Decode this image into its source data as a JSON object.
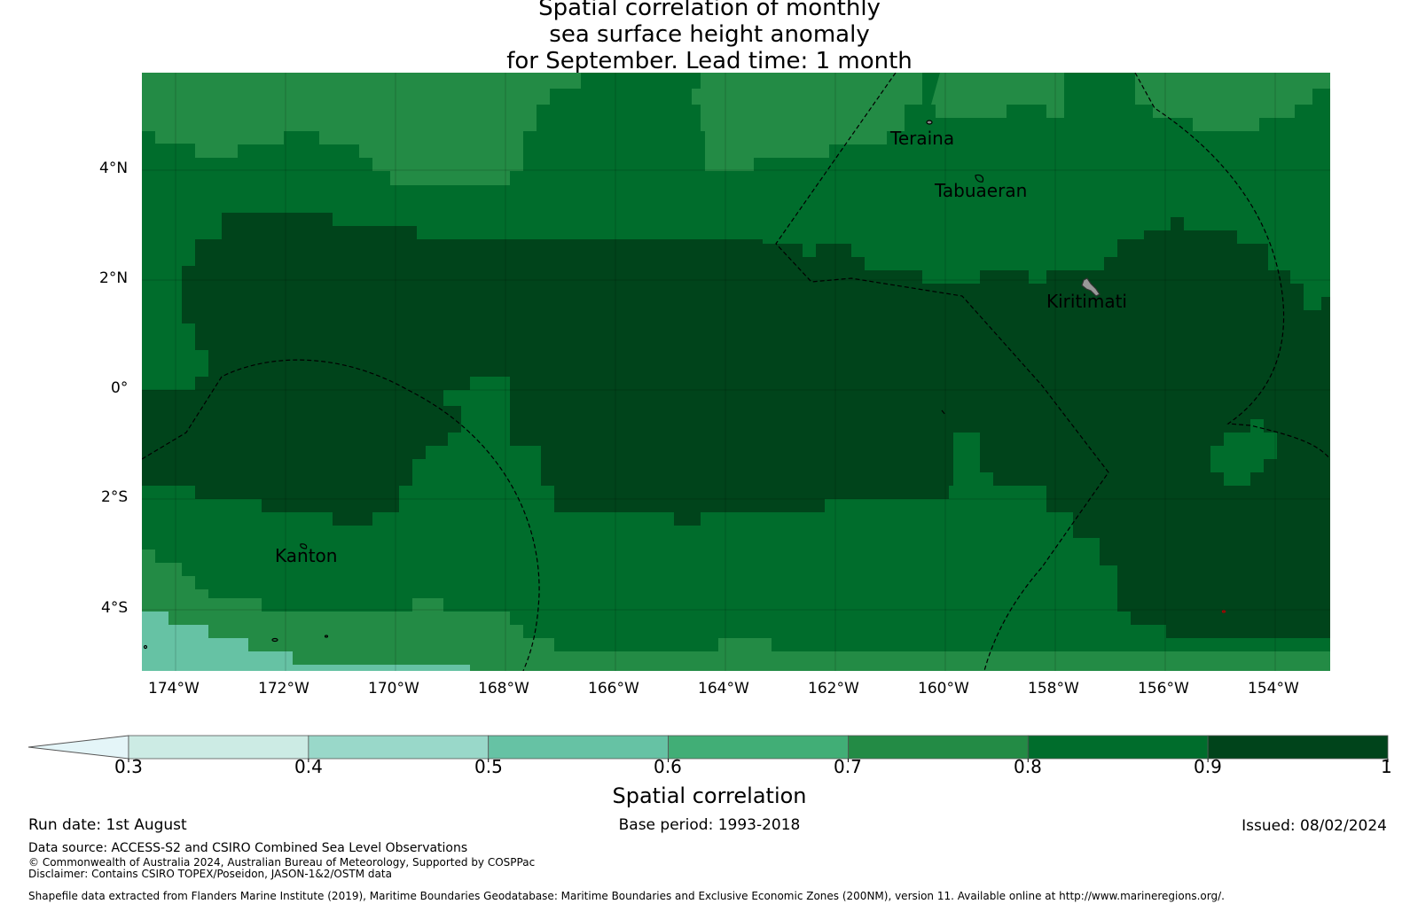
{
  "title": {
    "line1": "Spatial correlation of monthly",
    "line2": "sea surface height anomaly",
    "line3": "for September. Lead time: 1 month"
  },
  "map": {
    "lat_labels": [
      "4°N",
      "2°N",
      "0°",
      "2°S",
      "4°S"
    ],
    "lon_labels": [
      "174°W",
      "172°W",
      "170°W",
      "168°W",
      "166°W",
      "164°W",
      "162°W",
      "160°W",
      "158°W",
      "156°W",
      "154°W"
    ],
    "places": [
      "Teraina",
      "Tabuaeran",
      "Kiritimati",
      "Kanton"
    ],
    "region_levels": {
      "background": 0.85,
      "tongue_top_band": 0.75,
      "equatorial_core": 0.95,
      "southeast_core": 0.95,
      "southwest_corner_low": 0.55
    }
  },
  "colorbar": {
    "bounds": [
      0.3,
      0.4,
      0.5,
      0.6,
      0.7,
      0.8,
      0.9,
      1.0
    ],
    "tick_labels": [
      "0.3",
      "0.4",
      "0.5",
      "0.6",
      "0.7",
      "0.8",
      "0.9",
      "1"
    ],
    "colors": [
      "#e4f5f8",
      "#ccebe4",
      "#99d8c9",
      "#66c2a4",
      "#41ae76",
      "#238b45",
      "#006d2c",
      "#00441b"
    ],
    "extend": "min",
    "label": "Spatial correlation"
  },
  "footer": {
    "run_date": "Run date: 1st August",
    "base_period": "Base period: 1993-2018",
    "issued": "Issued: 08/02/2024",
    "data_source": "Data source: ACCESS-S2 and CSIRO Combined Sea Level Observations",
    "copyright": "© Commonwealth of Australia 2024, Australian Bureau of Meteorology, Supported by COSPPac",
    "disclaimer": "Disclaimer: Contains CSIRO TOPEX/Poseidon, JASON-1&2/OSTM data",
    "shapefile": "Shapefile data extracted from Flanders Marine Institute (2019), Maritime Boundaries Geodatabase: Maritime Boundaries and Exclusive Economic Zones (200NM), version 11. Available online at http://www.marineregions.org/."
  }
}
